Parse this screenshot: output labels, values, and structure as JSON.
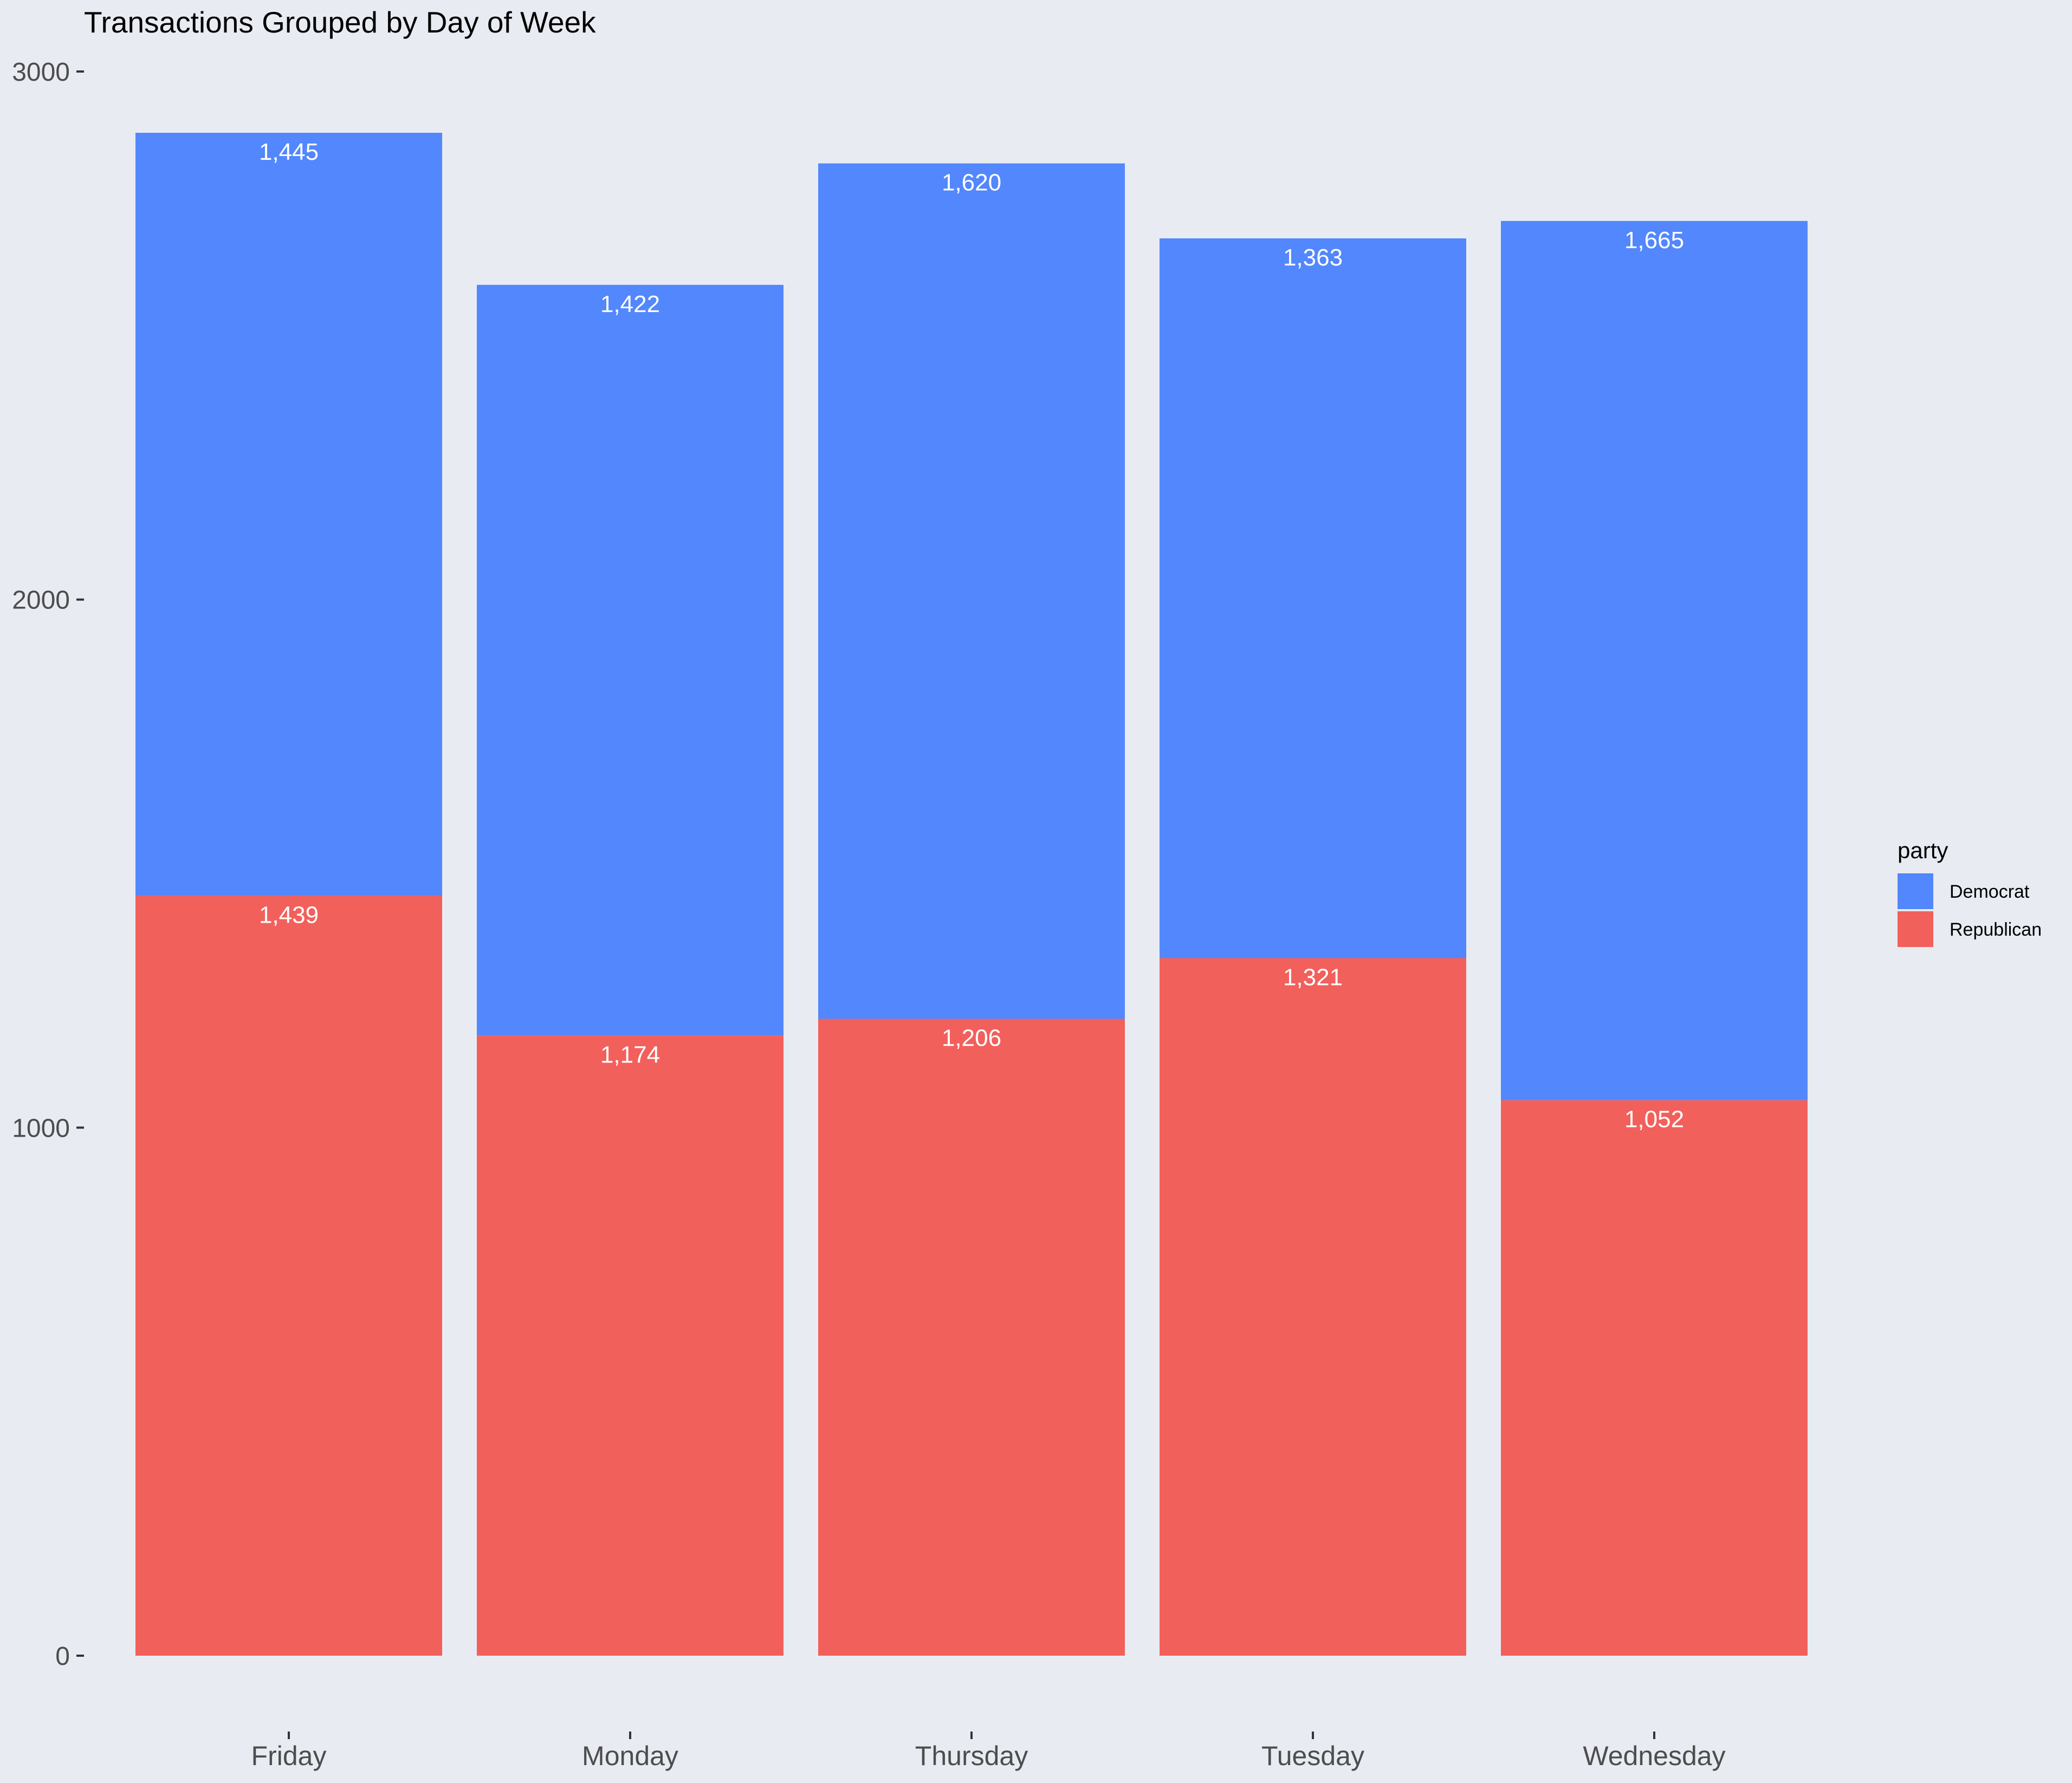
{
  "chart_data": {
    "type": "bar",
    "stacked": true,
    "title": "Transactions Grouped by Day of Week",
    "xlabel": "",
    "ylabel": "",
    "categories": [
      "Friday",
      "Monday",
      "Thursday",
      "Tuesday",
      "Wednesday"
    ],
    "ylim": [
      0,
      3000
    ],
    "yticks": [
      0,
      1000,
      2000,
      3000
    ],
    "grid": false,
    "legend": {
      "title": "party",
      "placement": "right"
    },
    "series": [
      {
        "name": "Republican",
        "color": "#f2605c",
        "values": [
          1439,
          1174,
          1206,
          1321,
          1052
        ],
        "labels": [
          "1,439",
          "1,174",
          "1,206",
          "1,321",
          "1,052"
        ]
      },
      {
        "name": "Democrat",
        "color": "#5287fd",
        "values": [
          1445,
          1422,
          1620,
          1363,
          1665
        ],
        "labels": [
          "1,445",
          "1,422",
          "1,620",
          "1,363",
          "1,665"
        ]
      }
    ],
    "legend_order": [
      "Democrat",
      "Republican"
    ]
  }
}
